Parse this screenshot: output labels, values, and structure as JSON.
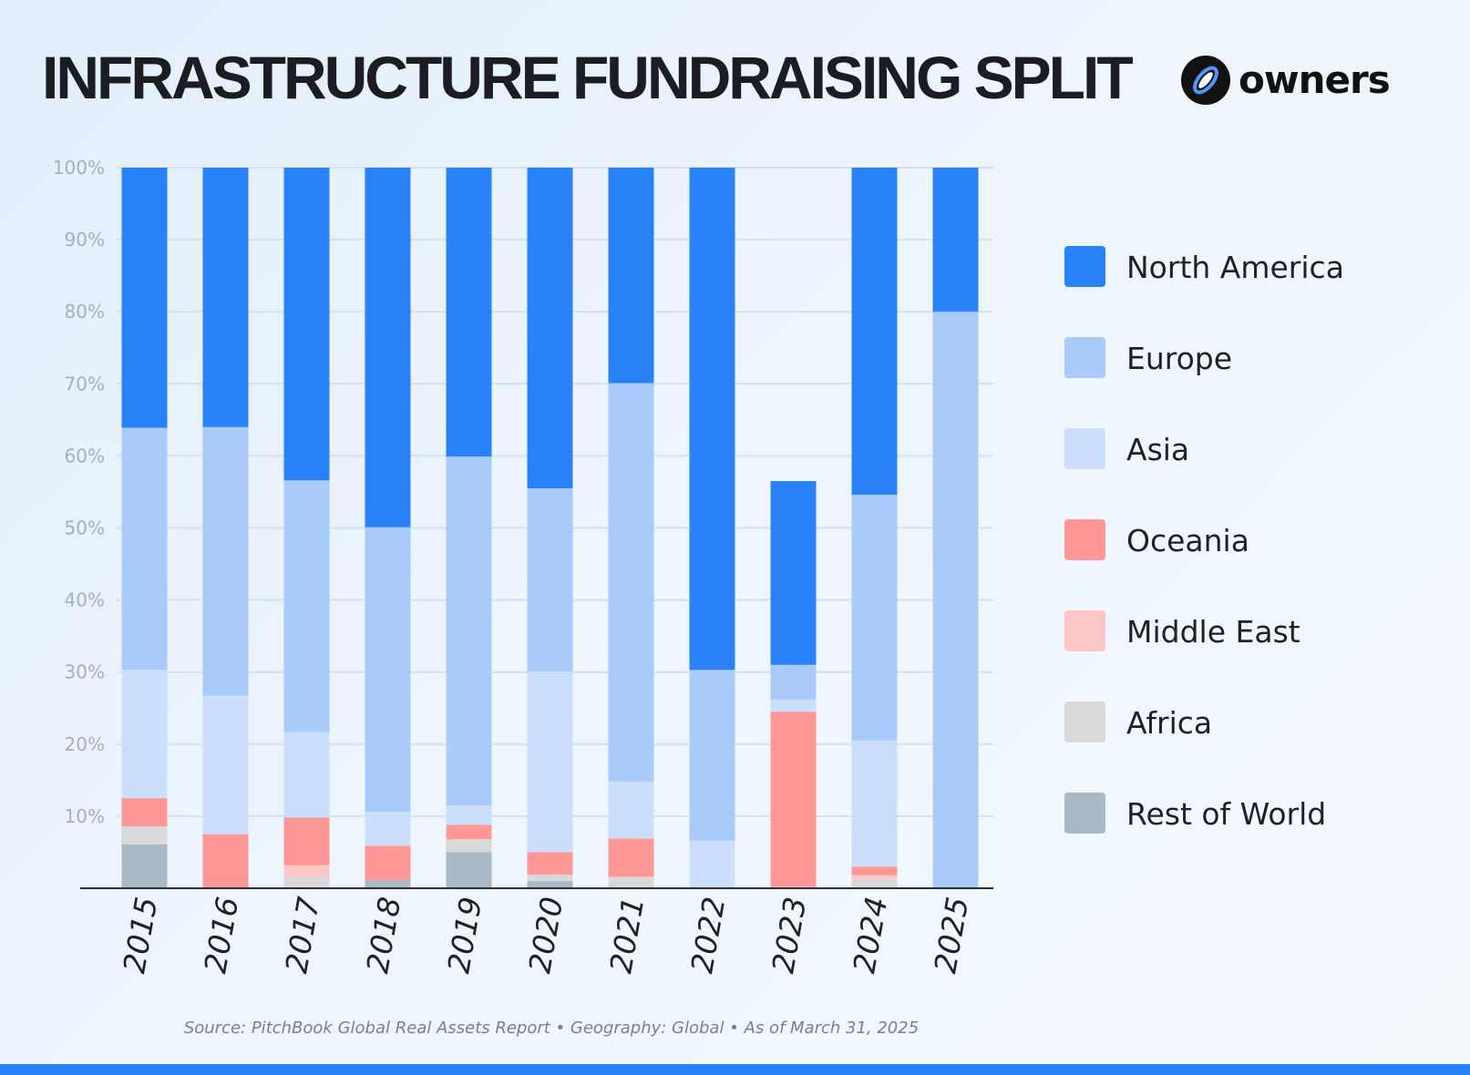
{
  "header": {
    "title": "INFRASTRUCTURE FUNDRAISING SPLIT",
    "brand": "owners"
  },
  "source_note": "Source: PitchBook Global Real Assets Report • Geography: Global • As of March 31, 2025",
  "colors": {
    "North America": "#2a82fb",
    "Europe": "#a8cbfc",
    "Asia": "#cbdffc",
    "Oceania": "#ff9797",
    "Middle East": "#ffc6c6",
    "Africa": "#d9d9d9",
    "Rest of World": "#a9bac6",
    "bottom_bar": "#2a82fb"
  },
  "chart_data": {
    "type": "bar",
    "stacked": true,
    "title": "INFRASTRUCTURE FUNDRAISING SPLIT",
    "xlabel": "",
    "ylabel": "",
    "ylim": [
      0,
      100
    ],
    "yticks": [
      "10%",
      "20%",
      "30%",
      "40%",
      "50%",
      "60%",
      "70%",
      "80%",
      "90%",
      "100%"
    ],
    "ytick_values": [
      10,
      20,
      30,
      40,
      50,
      60,
      70,
      80,
      90,
      100
    ],
    "grid": true,
    "legend_position": "right",
    "categories": [
      "2015",
      "2016",
      "2017",
      "2018",
      "2019",
      "2020",
      "2021",
      "2022",
      "2023",
      "2024",
      "2025"
    ],
    "series": [
      {
        "name": "Rest of World",
        "values": [
          6.1,
          0,
          0,
          1.1,
          5,
          1,
          0,
          0,
          0,
          0,
          0
        ]
      },
      {
        "name": "Africa",
        "values": [
          2.5,
          0,
          1.6,
          0,
          1.8,
          0.9,
          1.6,
          0,
          0,
          1.3,
          0
        ]
      },
      {
        "name": "Middle East",
        "values": [
          0,
          0,
          1.6,
          0,
          0,
          0,
          0,
          0,
          0.2,
          0.5,
          0
        ]
      },
      {
        "name": "Oceania",
        "values": [
          3.9,
          7.5,
          6.6,
          4.8,
          2,
          3.1,
          5.3,
          0,
          24.3,
          1.2,
          0
        ]
      },
      {
        "name": "Asia",
        "values": [
          17.8,
          19.2,
          11.9,
          4.7,
          2.7,
          25.1,
          7.9,
          6.6,
          1.7,
          17.5,
          0
        ]
      },
      {
        "name": "Europe",
        "values": [
          33.6,
          37.3,
          34.9,
          39.5,
          48.4,
          25.4,
          55.3,
          23.7,
          4.8,
          34.1,
          80
        ]
      },
      {
        "name": "North America",
        "values": [
          36.1,
          36,
          43.4,
          49.9,
          40.1,
          44.5,
          29.9,
          69.7,
          25.5,
          45.4,
          20
        ]
      }
    ],
    "legend": [
      "North America",
      "Europe",
      "Asia",
      "Oceania",
      "Middle East",
      "Africa",
      "Rest of World"
    ]
  }
}
